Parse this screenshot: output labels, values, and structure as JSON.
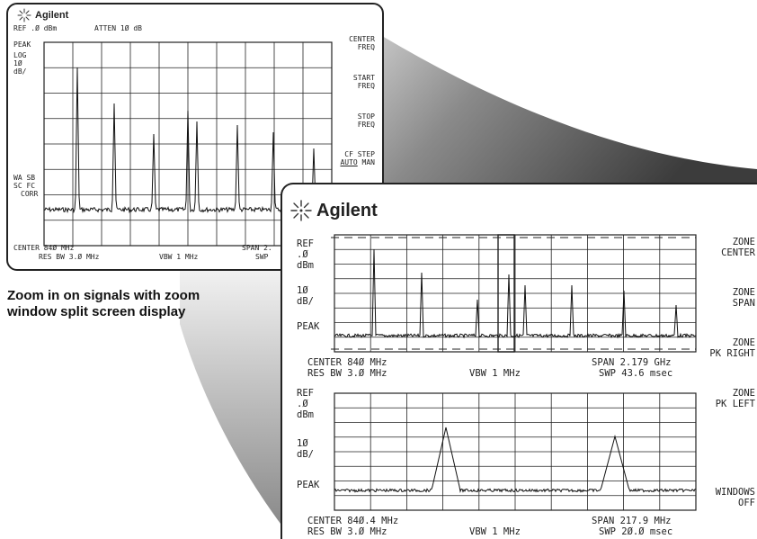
{
  "caption": {
    "line1": "Zoom in on signals with zoom",
    "line2": "window split screen display"
  },
  "colors": {
    "trace": "#111111",
    "grid": "#222222",
    "gradient_dark": "#3a3a3a",
    "gradient_light": "#e6e6e6"
  },
  "small_screen": {
    "brand": "Agilent",
    "header": {
      "ref": "REF .Ø dBm",
      "atten": "ATTEN 1Ø dB"
    },
    "left_labels": [
      "PEAK",
      "LOG",
      "1Ø",
      "dB/"
    ],
    "corr_labels": [
      "WA SB",
      "SC FC",
      "CORR"
    ],
    "softkeys": [
      {
        "line1": "CENTER",
        "line2": "FREQ"
      },
      {
        "line1": "START",
        "line2": "FREQ"
      },
      {
        "line1": "STOP",
        "line2": "FREQ"
      },
      {
        "line1": "CF STEP",
        "line2_underlined": "AUTO",
        "line2_rest": " MAN"
      }
    ],
    "footer": {
      "center": "CENTER 84Ø MHz",
      "span": "SPAN 2.",
      "res_bw": "RES BW 3.Ø MHz",
      "vbw": "VBW 1 MHz",
      "swp": "SWP"
    }
  },
  "large_screen": {
    "brand": "Agilent",
    "upper": {
      "left_labels": [
        "REF",
        ".Ø",
        "dBm",
        "1Ø",
        "dB/",
        "PEAK"
      ],
      "footer": {
        "center": "CENTER 84Ø MHz",
        "span": "SPAN 2.179 GHz",
        "res_bw": "RES BW 3.Ø MHz",
        "vbw": "VBW 1 MHz",
        "swp": "SWP 43.6 msec"
      }
    },
    "lower": {
      "left_labels": [
        "REF",
        ".Ø",
        "dBm",
        "1Ø",
        "dB/",
        "PEAK"
      ],
      "footer": {
        "center": "CENTER 84Ø.4 MHz",
        "span": "SPAN 217.9 MHz",
        "res_bw": "RES BW 3.Ø MHz",
        "vbw": "VBW 1 MHz",
        "swp": "SWP 2Ø.Ø msec"
      }
    },
    "softkeys": [
      {
        "line1": "ZONE",
        "line2": "CENTER"
      },
      {
        "line1": "ZONE",
        "line2": "SPAN"
      },
      {
        "line1": "ZONE",
        "line2": "PK RIGHT"
      },
      {
        "line1": "ZONE",
        "line2": "PK LEFT"
      },
      {
        "line1": "WINDOWS",
        "line2": "OFF"
      }
    ]
  }
}
